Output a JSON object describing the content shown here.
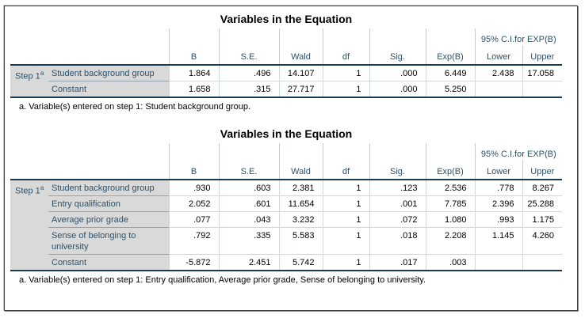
{
  "output": {
    "tables": [
      {
        "title": "Variables in the Equation",
        "header": {
          "ci_group": "95% C.I.for EXP(B)",
          "columns": [
            "B",
            "S.E.",
            "Wald",
            "df",
            "Sig.",
            "Exp(B)",
            "Lower",
            "Upper"
          ]
        },
        "step": {
          "label": "Step 1",
          "superscript": "a"
        },
        "rows": [
          {
            "label": "Student background group",
            "values": [
              "1.864",
              ".496",
              "14.107",
              "1",
              ".000",
              "6.449",
              "2.438",
              "17.058"
            ]
          },
          {
            "label": "Constant",
            "values": [
              "1.658",
              ".315",
              "27.717",
              "1",
              ".000",
              "5.250",
              "",
              ""
            ]
          }
        ],
        "footnote": "a. Variable(s) entered on step 1: Student background group."
      },
      {
        "title": "Variables in the Equation",
        "header": {
          "ci_group": "95% C.I.for EXP(B)",
          "columns": [
            "B",
            "S.E.",
            "Wald",
            "df",
            "Sig.",
            "Exp(B)",
            "Lower",
            "Upper"
          ]
        },
        "step": {
          "label": "Step 1",
          "superscript": "a"
        },
        "rows": [
          {
            "label": "Student background group",
            "values": [
              ".930",
              ".603",
              "2.381",
              "1",
              ".123",
              "2.536",
              ".778",
              "8.267"
            ]
          },
          {
            "label": "Entry qualification",
            "values": [
              "2.052",
              ".601",
              "11.654",
              "1",
              ".001",
              "7.785",
              "2.396",
              "25.288"
            ]
          },
          {
            "label": "Average prior grade",
            "values": [
              ".077",
              ".043",
              "3.232",
              "1",
              ".072",
              "1.080",
              ".993",
              "1.175"
            ]
          },
          {
            "label": "Sense of belonging to university",
            "values": [
              ".792",
              ".335",
              "5.583",
              "1",
              ".018",
              "2.208",
              "1.145",
              "4.260"
            ]
          },
          {
            "label": "Constant",
            "values": [
              "-5.872",
              "2.451",
              "5.742",
              "1",
              ".017",
              ".003",
              "",
              ""
            ]
          }
        ],
        "footnote": "a. Variable(s) entered on step 1: Entry qualification, Average prior grade, Sense of belonging to university."
      }
    ],
    "colors": {
      "header_text": "#2f5166",
      "label_background": "#d9d9d9",
      "dark_rule": "#1b3a52",
      "light_rule": "#ccd9e2",
      "gray_area_rule": "#8fa3b0",
      "header_vline": "#c2ccd4"
    }
  }
}
